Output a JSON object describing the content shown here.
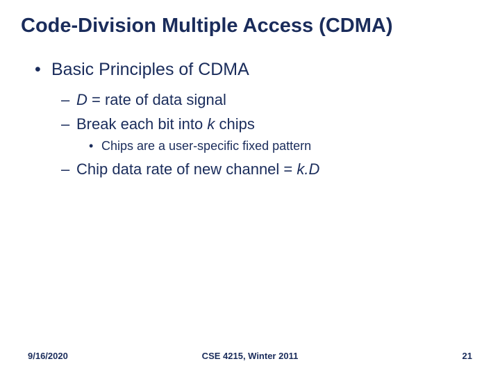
{
  "colors": {
    "text": "#1a2c5b",
    "background": "#ffffff"
  },
  "title": "Code-Division Multiple Access (CDMA)",
  "bullets": {
    "l1": "Basic Principles of CDMA",
    "l2a_pre": "",
    "l2a_italic": "D",
    "l2a_post": " = rate of data signal",
    "l2b_pre": "Break each bit into ",
    "l2b_italic": "k",
    "l2b_post": " chips",
    "l3": "Chips are a user-specific fixed pattern",
    "l2c_pre": "Chip data rate of new channel = ",
    "l2c_italic": "k.D"
  },
  "footer": {
    "date": "9/16/2020",
    "course": "CSE 4215, Winter 2011",
    "page": "21"
  },
  "typography": {
    "title_fontsize": 29,
    "l1_fontsize": 25,
    "l2_fontsize": 22,
    "l3_fontsize": 18,
    "footer_fontsize": 13,
    "font_family": "Arial"
  }
}
